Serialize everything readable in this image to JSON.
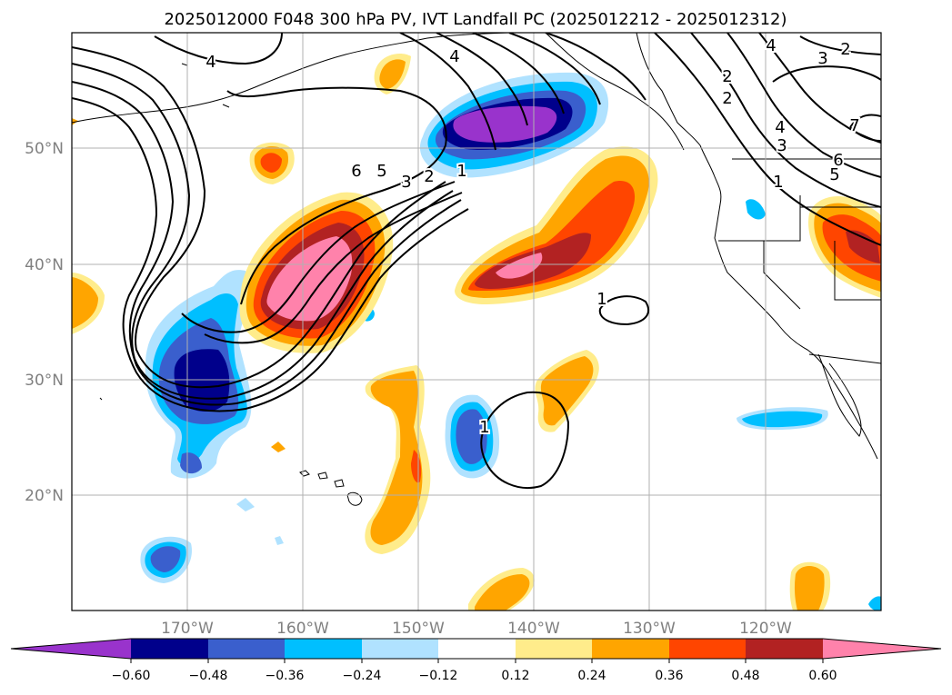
{
  "title": "2025012000 F048 300 hPa PV, IVT Landfall PC (2025012212 - 2025012312)",
  "map": {
    "lon_ticks": [
      "170°W",
      "160°W",
      "150°W",
      "140°W",
      "130°W",
      "120°W"
    ],
    "lat_ticks": [
      "50°N",
      "40°N",
      "30°N",
      "20°N"
    ],
    "lon_values": [
      -170,
      -160,
      -150,
      -140,
      -130,
      -120
    ],
    "lat_values": [
      50,
      40,
      30,
      20
    ],
    "lon_range": [
      -180,
      -110
    ],
    "lat_range": [
      10,
      60
    ],
    "gridlines": true,
    "contour_labels": [
      "4",
      "4",
      "4",
      "2",
      "3",
      "2",
      "6",
      "5",
      "3",
      "2",
      "1",
      "2",
      "4",
      "3",
      "1",
      "7",
      "6",
      "5",
      "1",
      "1"
    ]
  },
  "colorbar": {
    "tick_labels": [
      "−0.60",
      "−0.48",
      "−0.36",
      "−0.24",
      "−0.12",
      "0.12",
      "0.24",
      "0.36",
      "0.48",
      "0.60"
    ],
    "levels": [
      -0.6,
      -0.48,
      -0.36,
      -0.24,
      -0.12,
      0.12,
      0.24,
      0.36,
      0.48,
      0.6
    ],
    "colors": [
      "#9933cc",
      "#00008b",
      "#3a5fcd",
      "#00bfff",
      "#b0e2ff",
      "#ffffff",
      "#ffec8b",
      "#ffa500",
      "#ff4500",
      "#b22222",
      "#ff82ab"
    ],
    "extend": "both"
  }
}
